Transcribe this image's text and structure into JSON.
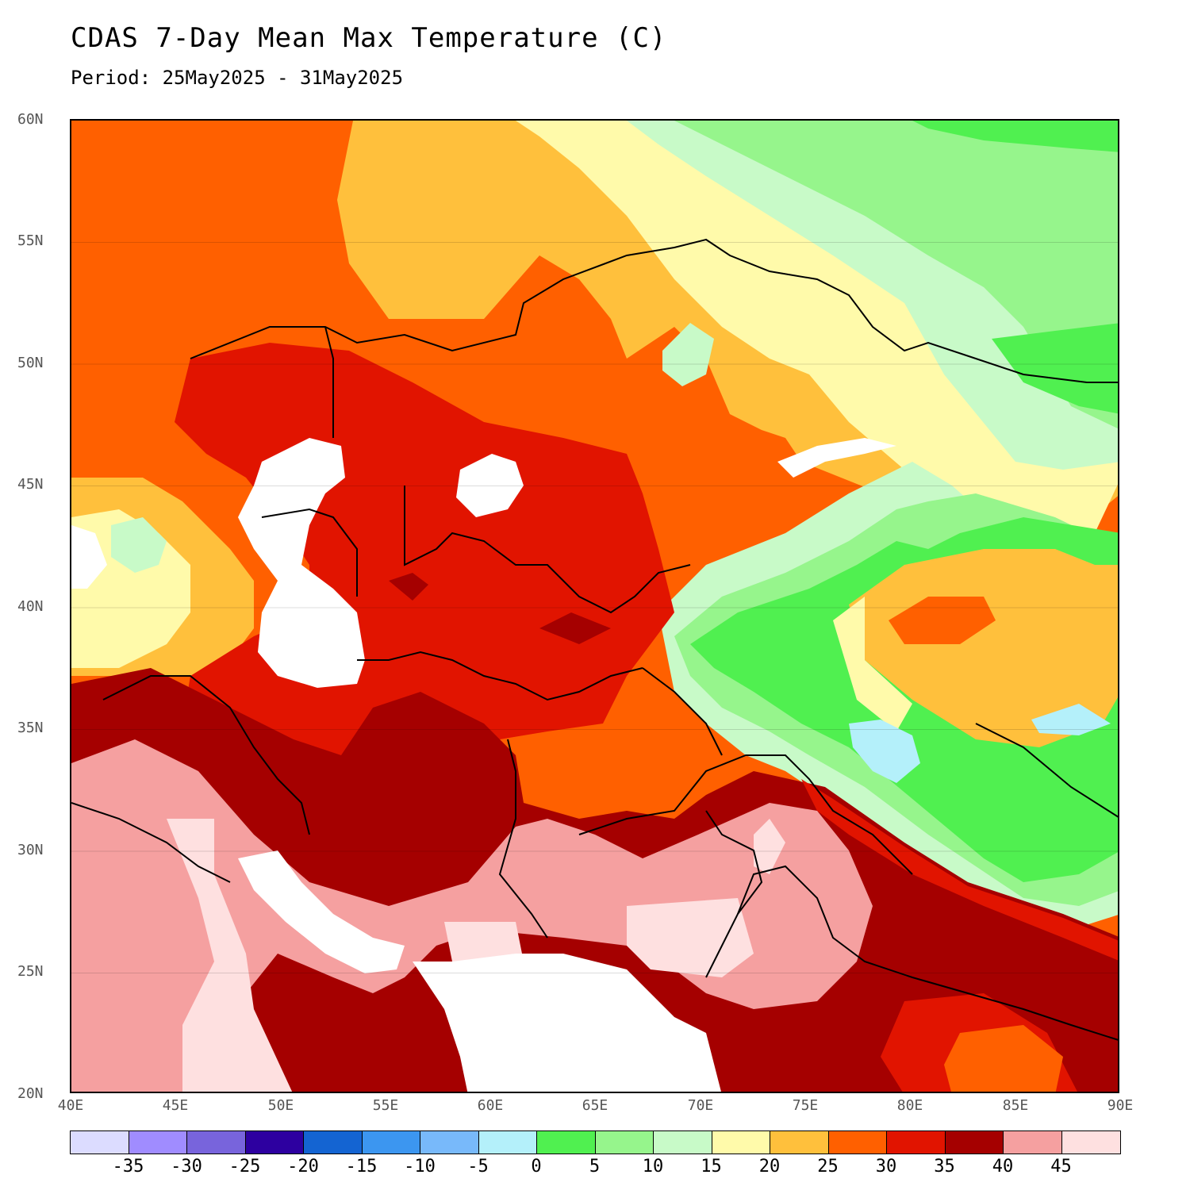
{
  "header": {
    "title": "CDAS 7-Day Mean Max Temperature (C)",
    "period": "Period: 25May2025 - 31May2025"
  },
  "map": {
    "lat_labels": [
      "60N",
      "55N",
      "50N",
      "45N",
      "40N",
      "35N",
      "30N",
      "25N",
      "20N"
    ],
    "lon_labels": [
      "40E",
      "45E",
      "50E",
      "55E",
      "60E",
      "65E",
      "70E",
      "75E",
      "80E",
      "85E",
      "90E"
    ],
    "colors": {
      "c_below_m35": "#dcdcff",
      "c_m35": "#a08cff",
      "c_m30": "#7864dc",
      "c_m25": "#2d00a0",
      "c_m20": "#1464d2",
      "c_m15": "#3c96f0",
      "c_m10": "#78b9fa",
      "c_m5": "#b4f0fa",
      "c_0": "#50f050",
      "c_5": "#96f58c",
      "c_10": "#c8fac8",
      "c_15": "#fffaaa",
      "c_20": "#ffc03c",
      "c_25": "#ff6000",
      "c_30": "#e11400",
      "c_35": "#a50000",
      "c_40": "#f5a0a0",
      "c_45": "#fee0e0"
    }
  },
  "colorbar": {
    "colors": [
      "#dcdcff",
      "#a08cff",
      "#7864dc",
      "#2d00a0",
      "#1464d2",
      "#3c96f0",
      "#78b9fa",
      "#b4f0fa",
      "#50f050",
      "#96f58c",
      "#c8fac8",
      "#fffaaa",
      "#ffc03c",
      "#ff6000",
      "#e11400",
      "#a50000",
      "#f5a0a0",
      "#fee0e0"
    ],
    "labels": [
      "-35",
      "-30",
      "-25",
      "-20",
      "-15",
      "-10",
      "-5",
      "0",
      "5",
      "10",
      "15",
      "20",
      "25",
      "30",
      "35",
      "40",
      "45"
    ]
  }
}
